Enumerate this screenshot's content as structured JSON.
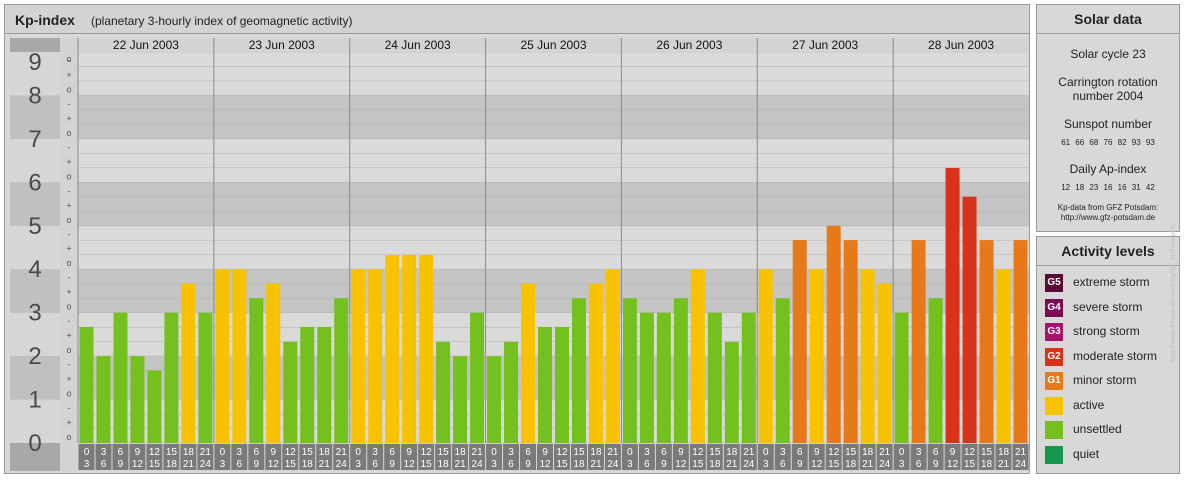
{
  "kp_panel": {
    "title": "Kp-index",
    "subtitle": "(planetary 3-hourly index of geomagnetic activity)"
  },
  "solar": {
    "title": "Solar data",
    "solar_cycle": "Solar cycle 23",
    "carrington_line1": "Carrington rotation",
    "carrington_line2": "number 2004",
    "sunspot_label": "Sunspot number",
    "sunspot_values": "61 66 68 76 82 93 93",
    "ap_label": "Daily Ap-index",
    "ap_values": "12 18 23 16 16 31 42",
    "source_line1": "Kp-data from GFZ Potsdam:",
    "source_line2": "http://www.gfz-potsdam.de"
  },
  "activity": {
    "title": "Activity levels",
    "levels": [
      {
        "badge": "G5",
        "label": "extreme storm",
        "color": "#5a0a33"
      },
      {
        "badge": "G4",
        "label": "severe storm",
        "color": "#7a0a52"
      },
      {
        "badge": "G3",
        "label": "strong storm",
        "color": "#a6136a"
      },
      {
        "badge": "G2",
        "label": "moderate storm",
        "color": "#d83219"
      },
      {
        "badge": "G1",
        "label": "minor storm",
        "color": "#e67a1a"
      },
      {
        "badge": "",
        "label": "active",
        "color": "#f7c300"
      },
      {
        "badge": "",
        "label": "unsettled",
        "color": "#74c01f"
      },
      {
        "badge": "",
        "label": "quiet",
        "color": "#179650"
      }
    ]
  },
  "watermark": "http://www.fleuve-eu-lun/jurg/kp_archive.pho",
  "chart_data": {
    "type": "bar",
    "title": "Kp-index",
    "subtitle": "(planetary 3-hourly index of geomagnetic activity)",
    "ylim": [
      0,
      9
    ],
    "y_ticks": [
      "0",
      "1",
      "2",
      "3",
      "4",
      "5",
      "6",
      "7",
      "8",
      "9"
    ],
    "y_minor_ticks": [
      "o",
      "+",
      "-"
    ],
    "interval_labels_top": [
      "0",
      "3",
      "6",
      "9",
      "12",
      "15",
      "18",
      "21"
    ],
    "interval_labels_bottom": [
      "3",
      "6",
      "9",
      "12",
      "15",
      "18",
      "21",
      "24"
    ],
    "days": [
      {
        "date": "22 Jun 2003",
        "kp": [
          2.67,
          2.0,
          3.0,
          2.0,
          1.67,
          3.0,
          3.67,
          3.0
        ]
      },
      {
        "date": "23 Jun 2003",
        "kp": [
          4.0,
          4.0,
          3.33,
          3.67,
          2.33,
          2.67,
          2.67,
          3.33
        ]
      },
      {
        "date": "24 Jun 2003",
        "kp": [
          4.0,
          4.0,
          4.33,
          4.33,
          4.33,
          2.33,
          2.0,
          3.0
        ]
      },
      {
        "date": "25 Jun 2003",
        "kp": [
          2.0,
          2.33,
          3.67,
          2.67,
          2.67,
          3.33,
          3.67,
          4.0
        ]
      },
      {
        "date": "26 Jun 2003",
        "kp": [
          3.33,
          3.0,
          3.0,
          3.33,
          4.0,
          3.0,
          2.33,
          3.0
        ]
      },
      {
        "date": "27 Jun 2003",
        "kp": [
          4.0,
          3.33,
          4.67,
          4.0,
          5.0,
          4.67,
          4.0,
          3.67
        ]
      },
      {
        "date": "28 Jun 2003",
        "kp": [
          3.0,
          4.67,
          3.33,
          6.33,
          5.67,
          4.67,
          4.0,
          4.67
        ]
      }
    ],
    "color_scale": {
      "unsettled": "#74c01f",
      "active": "#f7c300",
      "minor_storm": "#e67a1a",
      "moderate_storm": "#d83219"
    },
    "grid": true
  }
}
